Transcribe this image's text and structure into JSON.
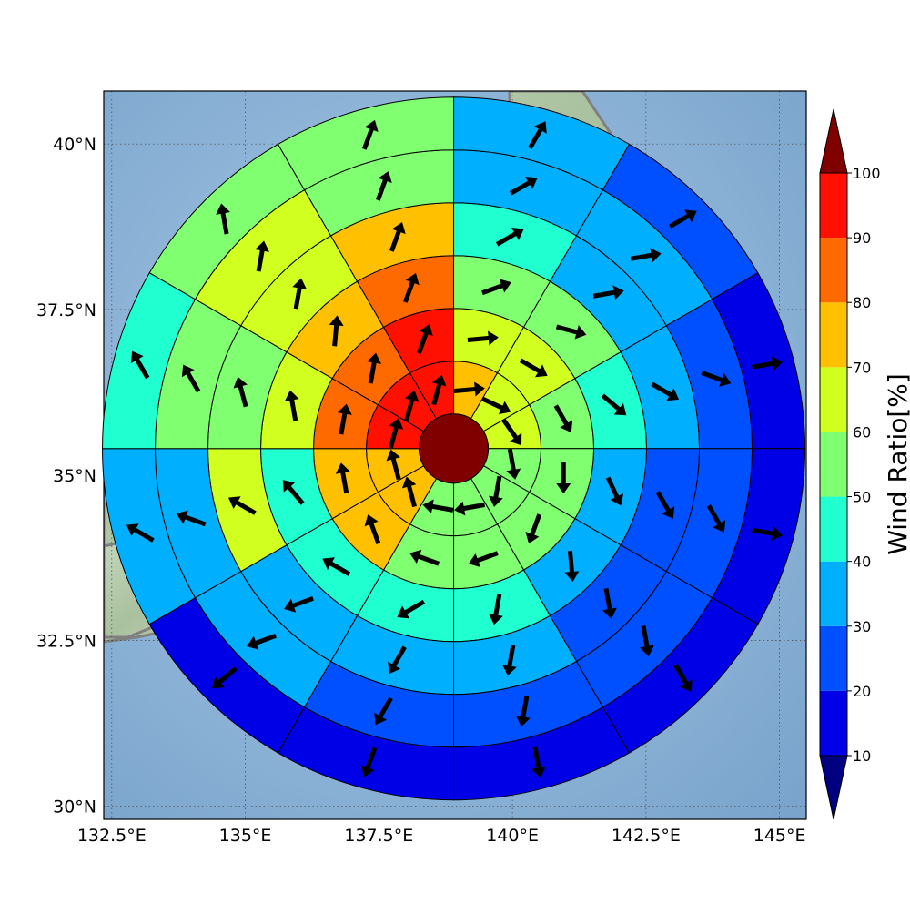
{
  "chart_data": {
    "type": "polar-sector-map",
    "map": {
      "lon_range": [
        132.35,
        145.5
      ],
      "lat_range": [
        29.8,
        40.8
      ],
      "lon_ticks": [
        132.5,
        135,
        137.5,
        140,
        142.5,
        145
      ],
      "lon_tick_labels": [
        "132.5°E",
        "135°E",
        "137.5°E",
        "140°E",
        "142.5°E",
        "145°E"
      ],
      "lat_ticks": [
        30,
        32.5,
        35,
        37.5,
        40
      ],
      "lat_tick_labels": [
        "30°N",
        "32.5°N",
        "35°N",
        "37.5°N",
        "40°N"
      ],
      "grid": true,
      "coastline_color": "#808080"
    },
    "center": {
      "lon": 138.9,
      "lat": 35.4,
      "value": 100
    },
    "ring_count": 6,
    "sectors_per_ring": 12,
    "rings": [
      {
        "ring": 1,
        "values": [
          70,
          62,
          68,
          55,
          52,
          52,
          52,
          70,
          70,
          92,
          92,
          92
        ],
        "wind_dir_deg": [
          85,
          115,
          145,
          170,
          190,
          260,
          280,
          345,
          345,
          15,
          15,
          15
        ]
      },
      {
        "ring": 2,
        "values": [
          62,
          62,
          58,
          52,
          52,
          52,
          52,
          70,
          70,
          82,
          82,
          92
        ],
        "wind_dir_deg": [
          85,
          120,
          150,
          180,
          200,
          250,
          290,
          340,
          350,
          10,
          10,
          20
        ]
      },
      {
        "ring": 3,
        "values": [
          55,
          52,
          45,
          38,
          35,
          42,
          42,
          42,
          45,
          60,
          72,
          82
        ],
        "wind_dir_deg": [
          70,
          105,
          130,
          155,
          175,
          190,
          240,
          300,
          320,
          350,
          5,
          20
        ]
      },
      {
        "ring": 4,
        "values": [
          45,
          35,
          38,
          25,
          22,
          38,
          38,
          38,
          60,
          52,
          62,
          72
        ],
        "wind_dir_deg": [
          60,
          80,
          120,
          150,
          170,
          190,
          210,
          250,
          300,
          345,
          10,
          20
        ]
      },
      {
        "ring": 5,
        "values": [
          30,
          30,
          25,
          25,
          25,
          25,
          25,
          30,
          35,
          55,
          62,
          55
        ],
        "wind_dir_deg": [
          60,
          80,
          110,
          150,
          170,
          190,
          210,
          250,
          290,
          330,
          10,
          20
        ]
      },
      {
        "ring": 6,
        "values": [
          30,
          25,
          18,
          18,
          18,
          18,
          18,
          18,
          30,
          45,
          55,
          55
        ],
        "wind_dir_deg": [
          30,
          60,
          80,
          100,
          150,
          170,
          200,
          230,
          300,
          330,
          350,
          20
        ]
      }
    ],
    "colorbar": {
      "label": "Wind Ratio[%]",
      "ticks": [
        10,
        20,
        30,
        40,
        50,
        60,
        70,
        80,
        90,
        100
      ],
      "bins": [
        {
          "min": 10,
          "max": 20,
          "color": "#0000e6"
        },
        {
          "min": 20,
          "max": 30,
          "color": "#0050ff"
        },
        {
          "min": 30,
          "max": 40,
          "color": "#00b0ff"
        },
        {
          "min": 40,
          "max": 50,
          "color": "#20ffd0"
        },
        {
          "min": 50,
          "max": 60,
          "color": "#80ff70"
        },
        {
          "min": 60,
          "max": 70,
          "color": "#d0ff20"
        },
        {
          "min": 70,
          "max": 80,
          "color": "#ffc000"
        },
        {
          "min": 80,
          "max": 90,
          "color": "#ff6a00"
        },
        {
          "min": 90,
          "max": 100,
          "color": "#ff1000"
        }
      ],
      "under_color": "#000080",
      "over_color": "#800000",
      "extend": "both"
    }
  }
}
